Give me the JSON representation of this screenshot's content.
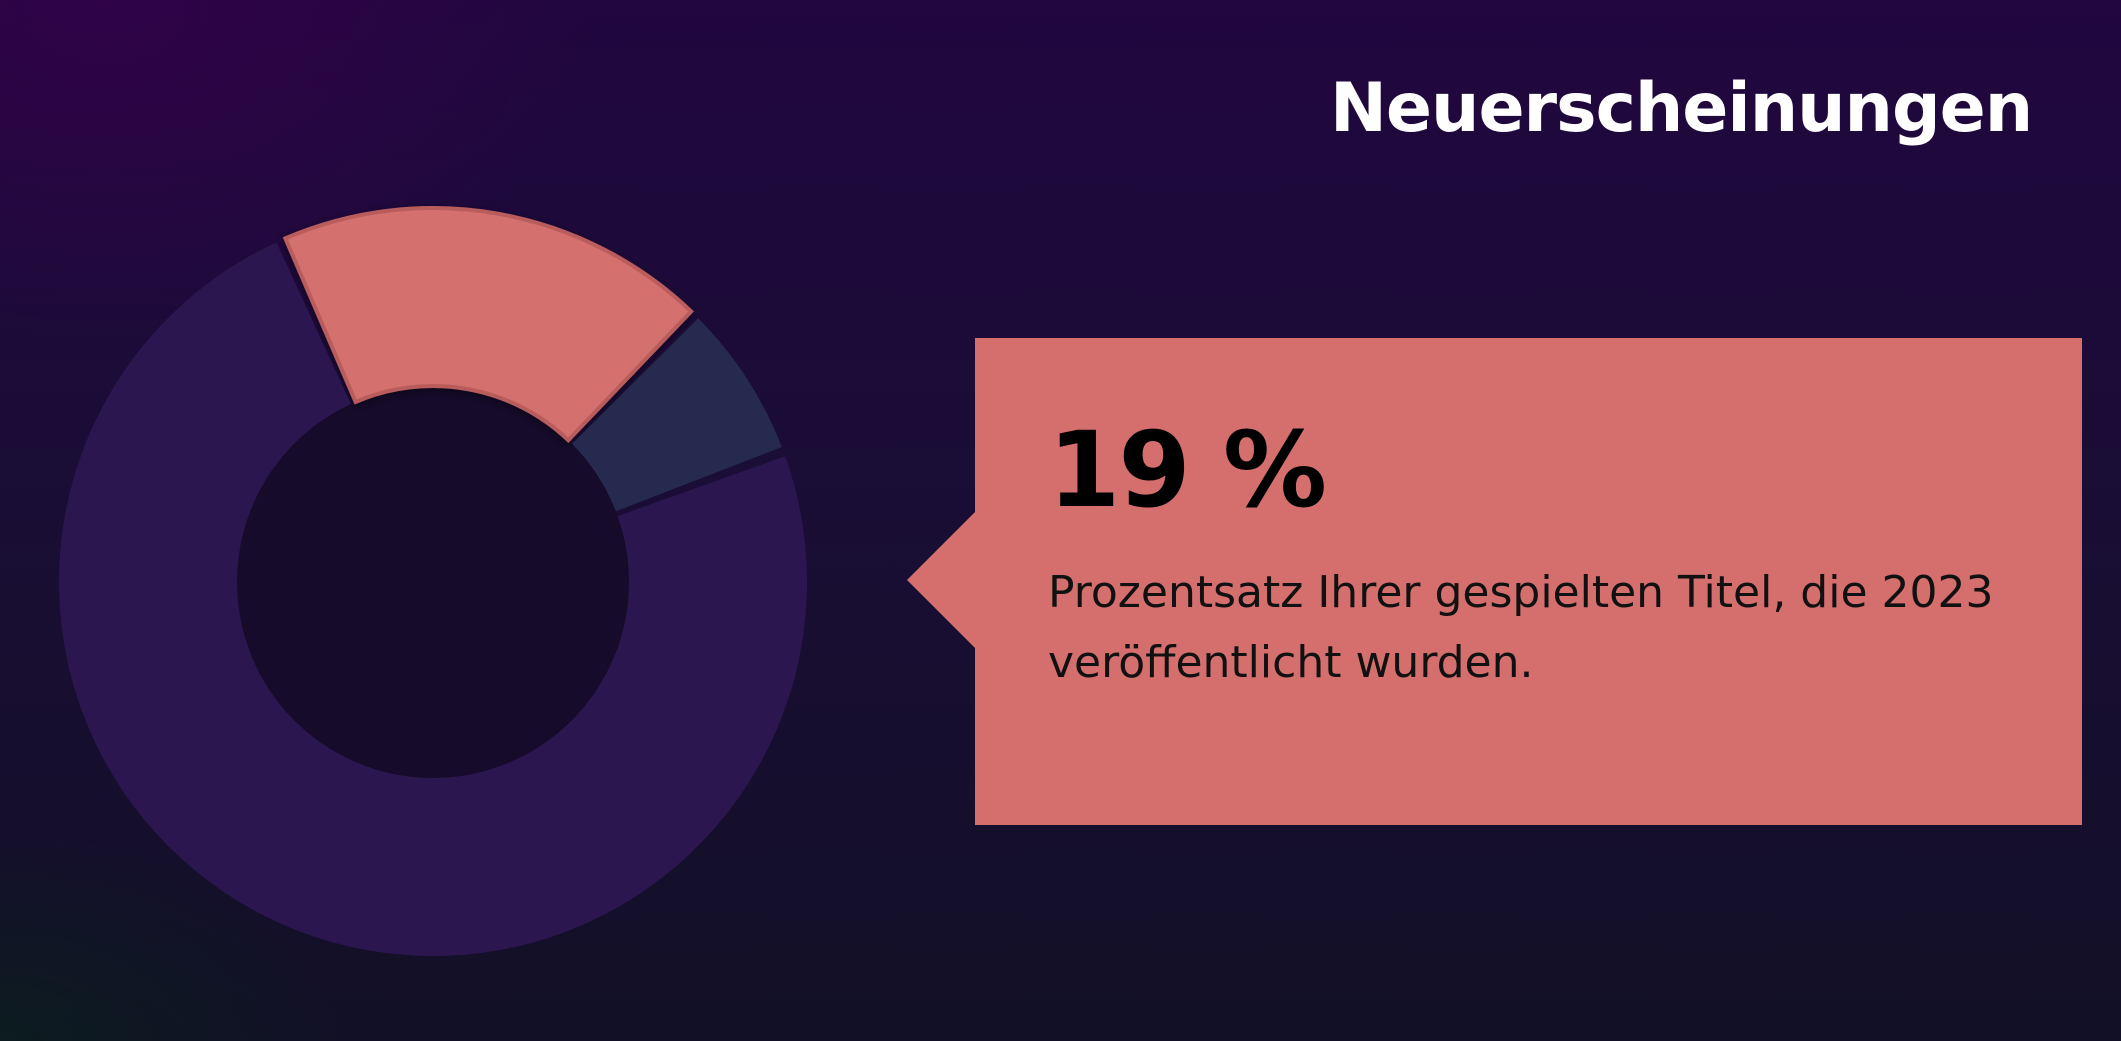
{
  "title": "Neuerscheinungen",
  "callout": {
    "value": "19 %",
    "description": "Prozentsatz Ihrer gespielten Titel, die 2023 veröffentlicht wurden."
  },
  "chart_data": {
    "type": "pie",
    "variant": "donut",
    "title": "Neuerscheinungen",
    "slices": [
      {
        "value": 19,
        "color": "#d46f6e",
        "highlighted": true
      },
      {
        "value": 7,
        "color": "#262a4e",
        "highlighted": false
      },
      {
        "value": 74,
        "color": "#2c1650",
        "highlighted": false
      }
    ],
    "start_angle_deg": -24,
    "gap_deg": 1.5
  }
}
